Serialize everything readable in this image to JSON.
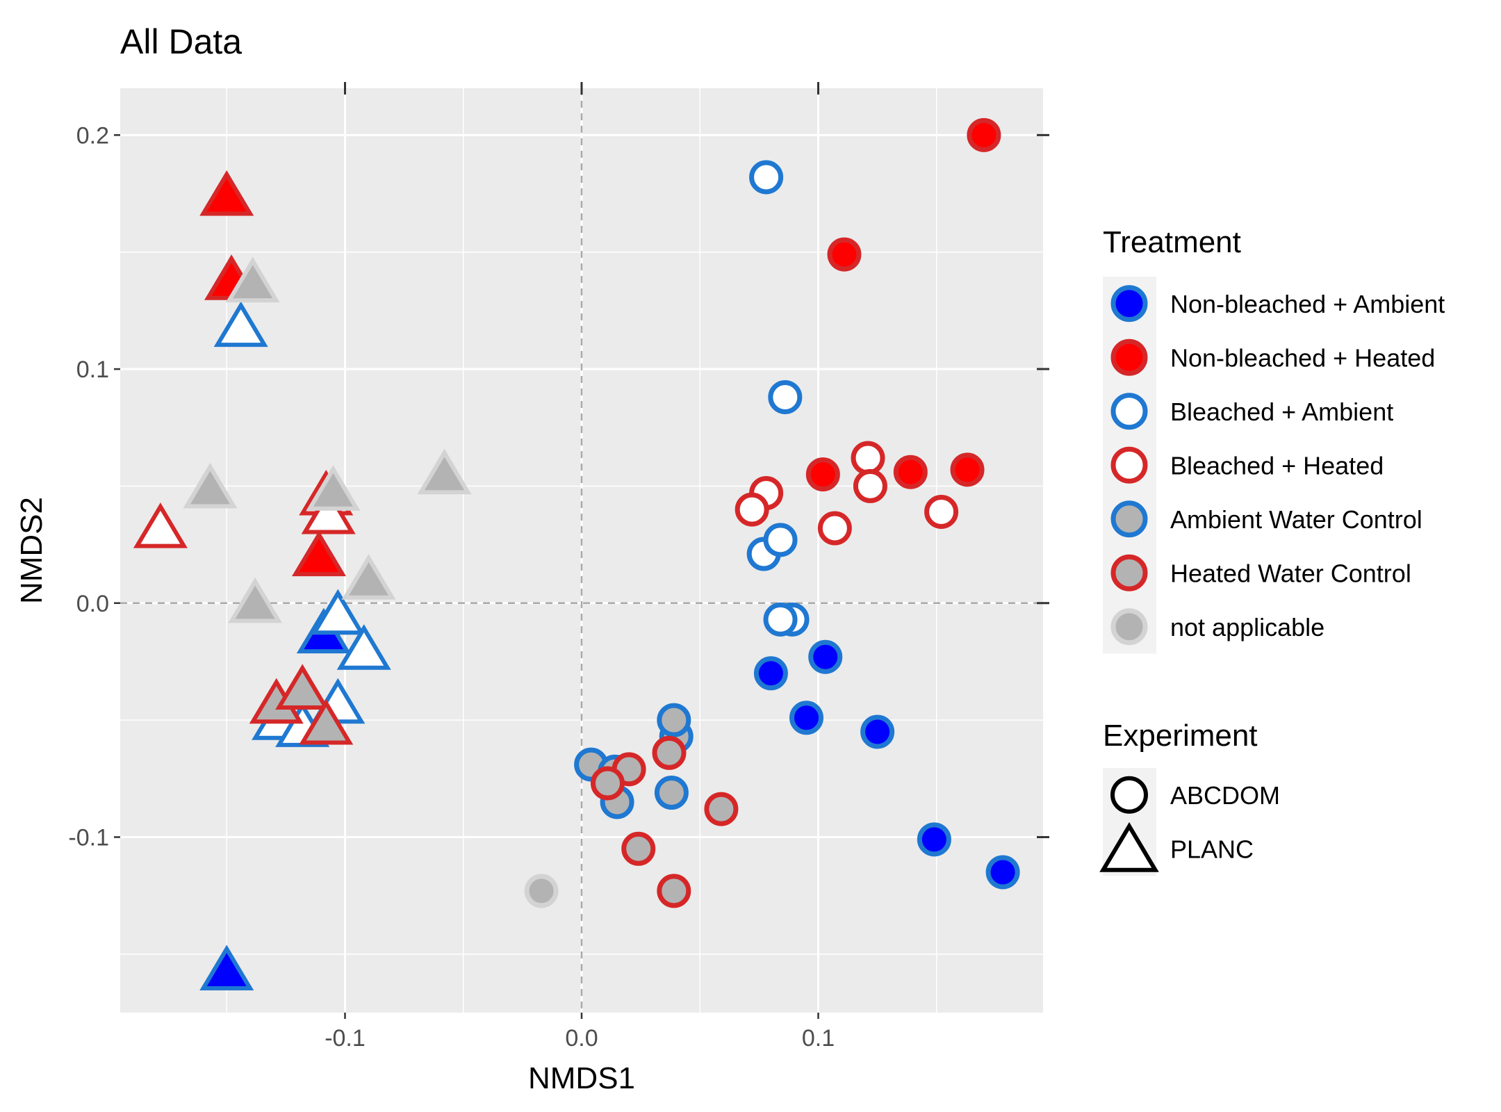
{
  "chart_data": {
    "type": "scatter",
    "title": "All Data",
    "xlabel": "NMDS1",
    "ylabel": "NMDS2",
    "xlim": [
      -0.195,
      0.195
    ],
    "ylim": [
      -0.175,
      0.22
    ],
    "x_ticks": [
      -0.1,
      0.0,
      0.1
    ],
    "x_tick_labels": [
      "-0.1",
      "0.0",
      "0.1"
    ],
    "y_ticks": [
      -0.1,
      0.0,
      0.1,
      0.2
    ],
    "y_tick_labels": [
      "-0.1",
      "0.0",
      "0.1",
      "0.2"
    ],
    "grid": true,
    "background": "#ebebeb",
    "reference_lines": {
      "x": 0,
      "y": 0,
      "style": "dashed"
    },
    "legend_position": "right",
    "treatment_legend": {
      "title": "Treatment",
      "items": [
        {
          "label": "Non-bleached + Ambient",
          "fill": "#0000ff",
          "stroke": "#1f78d1"
        },
        {
          "label": "Non-bleached + Heated",
          "fill": "#ff0000",
          "stroke": "#d62728"
        },
        {
          "label": "Bleached + Ambient",
          "fill": "#ffffff",
          "stroke": "#1f78d1"
        },
        {
          "label": "Bleached + Heated",
          "fill": "#ffffff",
          "stroke": "#d62728"
        },
        {
          "label": "Ambient Water Control",
          "fill": "#b3b3b3",
          "stroke": "#1f78d1"
        },
        {
          "label": "Heated Water Control",
          "fill": "#b3b3b3",
          "stroke": "#d62728"
        },
        {
          "label": "not applicable",
          "fill": "#b3b3b3",
          "stroke": "#d3d3d3"
        }
      ]
    },
    "experiment_legend": {
      "title": "Experiment",
      "items": [
        {
          "label": "ABCDOM",
          "shape": "circle"
        },
        {
          "label": "PLANC",
          "shape": "triangle"
        }
      ]
    },
    "series": [
      {
        "treatment": "Non-bleached + Ambient",
        "shape": "circle",
        "points": [
          [
            0.08,
            -0.03
          ],
          [
            0.103,
            -0.023
          ],
          [
            0.095,
            -0.049
          ],
          [
            0.125,
            -0.055
          ],
          [
            0.149,
            -0.101
          ],
          [
            0.178,
            -0.115
          ]
        ]
      },
      {
        "treatment": "Non-bleached + Ambient",
        "shape": "triangle",
        "points": [
          [
            -0.109,
            -0.013
          ],
          [
            -0.15,
            -0.157
          ]
        ]
      },
      {
        "treatment": "Non-bleached + Heated",
        "shape": "circle",
        "points": [
          [
            0.17,
            0.2
          ],
          [
            0.111,
            0.149
          ],
          [
            0.102,
            0.055
          ],
          [
            0.139,
            0.056
          ],
          [
            0.163,
            0.057
          ]
        ]
      },
      {
        "treatment": "Non-bleached + Heated",
        "shape": "triangle",
        "points": [
          [
            -0.15,
            0.174
          ],
          [
            -0.148,
            0.138
          ],
          [
            -0.111,
            0.02
          ]
        ]
      },
      {
        "treatment": "Bleached + Ambient",
        "shape": "circle",
        "points": [
          [
            0.078,
            0.182
          ],
          [
            0.086,
            0.088
          ],
          [
            0.077,
            0.021
          ],
          [
            0.084,
            0.027
          ],
          [
            0.089,
            -0.007
          ],
          [
            0.084,
            -0.007
          ]
        ]
      },
      {
        "treatment": "Bleached + Ambient",
        "shape": "triangle",
        "points": [
          [
            -0.144,
            0.118
          ],
          [
            -0.103,
            -0.005
          ],
          [
            -0.092,
            -0.02
          ],
          [
            -0.103,
            -0.043
          ],
          [
            -0.128,
            -0.05
          ],
          [
            -0.118,
            -0.053
          ]
        ]
      },
      {
        "treatment": "Bleached + Heated",
        "shape": "circle",
        "points": [
          [
            0.121,
            0.062
          ],
          [
            0.122,
            0.05
          ],
          [
            0.078,
            0.047
          ],
          [
            0.072,
            0.04
          ],
          [
            0.107,
            0.032
          ],
          [
            0.152,
            0.039
          ]
        ]
      },
      {
        "treatment": "Bleached + Heated",
        "shape": "triangle",
        "points": [
          [
            -0.178,
            0.032
          ],
          [
            -0.108,
            0.046
          ],
          [
            -0.107,
            0.038
          ]
        ]
      },
      {
        "treatment": "Ambient Water Control",
        "shape": "circle",
        "points": [
          [
            0.04,
            -0.057
          ],
          [
            0.039,
            -0.05
          ],
          [
            0.004,
            -0.069
          ],
          [
            0.015,
            -0.085
          ],
          [
            0.038,
            -0.081
          ],
          [
            0.014,
            -0.072
          ]
        ]
      },
      {
        "treatment": "Heated Water Control",
        "shape": "circle",
        "points": [
          [
            0.037,
            -0.064
          ],
          [
            0.02,
            -0.071
          ],
          [
            0.011,
            -0.077
          ],
          [
            0.059,
            -0.088
          ],
          [
            0.024,
            -0.105
          ],
          [
            0.039,
            -0.123
          ]
        ]
      },
      {
        "treatment": "Heated Water Control",
        "shape": "triangle",
        "points": [
          [
            -0.129,
            -0.043
          ],
          [
            -0.118,
            -0.037
          ],
          [
            -0.108,
            -0.052
          ]
        ]
      },
      {
        "treatment": "not applicable",
        "shape": "circle",
        "points": [
          [
            -0.017,
            -0.123
          ]
        ]
      },
      {
        "treatment": "not applicable",
        "shape": "triangle",
        "points": [
          [
            -0.139,
            0.137
          ],
          [
            -0.157,
            0.049
          ],
          [
            -0.058,
            0.055
          ],
          [
            -0.105,
            0.048
          ],
          [
            -0.09,
            0.01
          ],
          [
            -0.138,
            0.0
          ]
        ]
      }
    ]
  }
}
